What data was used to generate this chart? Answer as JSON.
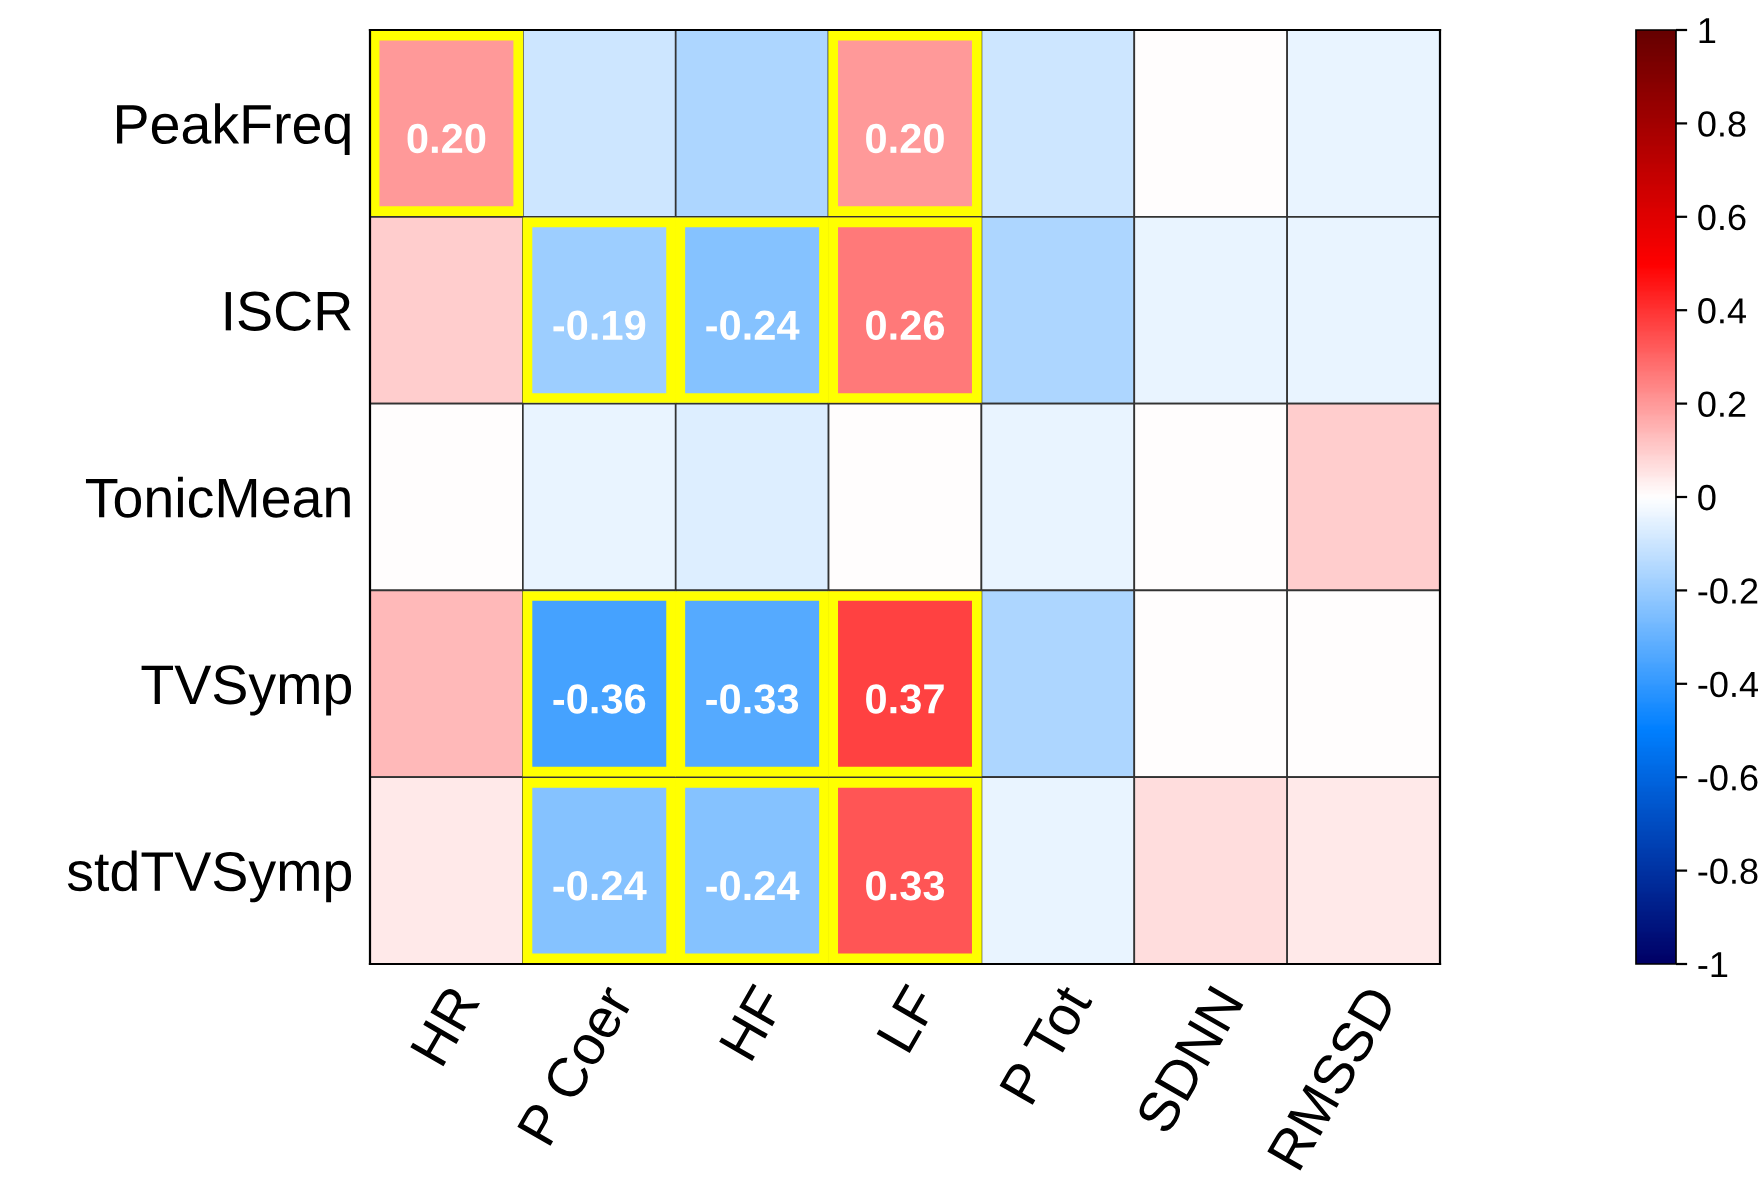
{
  "chart_data": {
    "type": "heatmap",
    "categories": [
      "HR",
      "P Coer",
      "HF",
      "LF",
      "P Tot",
      "SDNN",
      "RMSSD"
    ],
    "y_categories": [
      "PeakFreq",
      "ISCR",
      "TonicMean",
      "TVSymp",
      "stdTVSymp"
    ],
    "cells": [
      [
        0.2,
        -0.1,
        -0.16,
        0.2,
        -0.1,
        0,
        -0.04
      ],
      [
        0.1,
        -0.19,
        -0.24,
        0.26,
        -0.16,
        -0.04,
        -0.04
      ],
      [
        0,
        -0.04,
        -0.07,
        0,
        -0.04,
        0,
        0.1
      ],
      [
        0.14,
        -0.36,
        -0.33,
        0.37,
        -0.16,
        0,
        0
      ],
      [
        0.04,
        -0.24,
        -0.24,
        0.33,
        -0.04,
        0.07,
        0.04
      ]
    ],
    "cell_labels": [
      [
        "0.20",
        null,
        null,
        "0.20",
        null,
        null,
        null
      ],
      [
        null,
        "-0.19",
        "-0.24",
        "0.26",
        null,
        null,
        null
      ],
      [
        null,
        null,
        null,
        null,
        null,
        null,
        null
      ],
      [
        null,
        "-0.36",
        "-0.33",
        "0.37",
        null,
        null,
        null
      ],
      [
        null,
        "-0.24",
        "-0.24",
        "0.33",
        null,
        null,
        null
      ]
    ],
    "clim": [
      -1,
      1
    ],
    "cticks": [
      -1,
      -0.8,
      -0.6,
      -0.4,
      -0.2,
      0,
      0.2,
      0.4,
      0.6,
      0.8,
      1
    ]
  }
}
